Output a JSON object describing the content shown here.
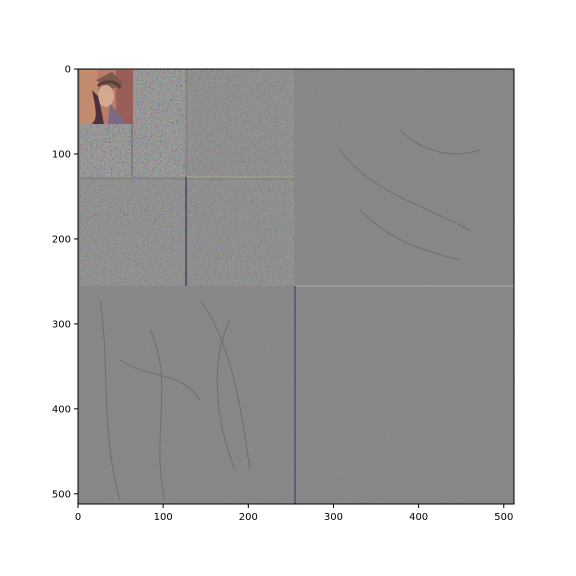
{
  "chart_data": {
    "type": "image",
    "description_visible": false,
    "x_ticks": [
      "0",
      "100",
      "200",
      "300",
      "400",
      "500"
    ],
    "y_ticks": [
      "0",
      "100",
      "200",
      "300",
      "400",
      "500"
    ],
    "x_range": [
      0,
      512
    ],
    "y_range": [
      512,
      0
    ],
    "grid": false,
    "legend": "none",
    "background": "#808080",
    "frame_color": "#000000"
  }
}
